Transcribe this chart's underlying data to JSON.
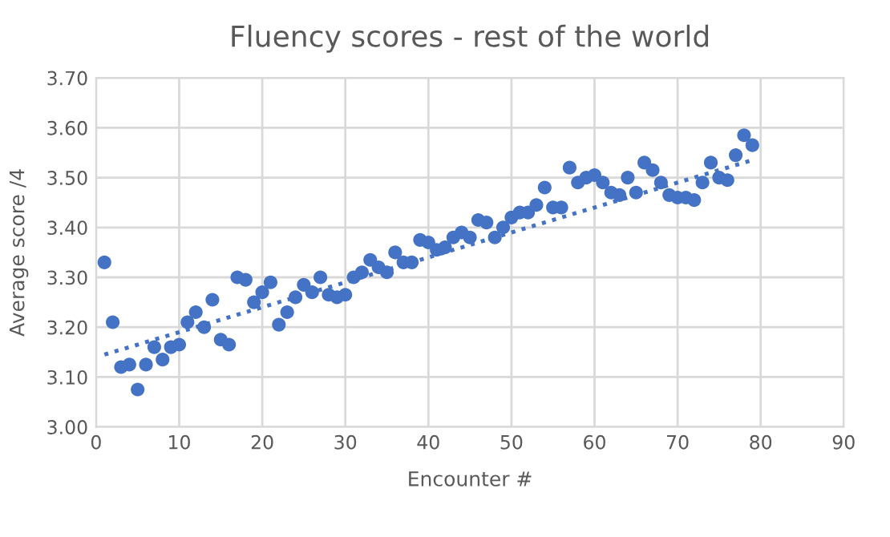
{
  "chart_data": {
    "type": "scatter",
    "title": "Fluency scores - rest of the world",
    "xlabel": "Encounter #",
    "ylabel": "Average score /4",
    "xlim": [
      0,
      90
    ],
    "xticks": [
      0,
      10,
      20,
      30,
      40,
      50,
      60,
      70,
      80,
      90
    ],
    "ylim": [
      3.0,
      3.7
    ],
    "yticks": [
      {
        "value": 3.0,
        "label": "3.00"
      },
      {
        "value": 3.1,
        "label": "3.10"
      },
      {
        "value": 3.2,
        "label": "3.20"
      },
      {
        "value": 3.3,
        "label": "3.30"
      },
      {
        "value": 3.4,
        "label": "3.40"
      },
      {
        "value": 3.5,
        "label": "3.50"
      },
      {
        "value": 3.6,
        "label": "3.60"
      },
      {
        "value": 3.7,
        "label": "3.70"
      }
    ],
    "grid": true,
    "series": [
      {
        "marker": "circle",
        "color": "#4472c4",
        "x": [
          1,
          2,
          3,
          4,
          5,
          6,
          7,
          8,
          9,
          10,
          11,
          12,
          13,
          14,
          15,
          16,
          17,
          18,
          19,
          20,
          21,
          22,
          23,
          24,
          25,
          26,
          27,
          28,
          29,
          30,
          31,
          32,
          33,
          34,
          35,
          36,
          37,
          38,
          39,
          40,
          41,
          42,
          43,
          44,
          45,
          46,
          47,
          48,
          49,
          50,
          51,
          52,
          53,
          54,
          55,
          56,
          57,
          58,
          59,
          60,
          61,
          62,
          63,
          64,
          65,
          66,
          67,
          68,
          69,
          70,
          71,
          72,
          73,
          74,
          75,
          76,
          77,
          78,
          79
        ],
        "values": [
          3.33,
          3.21,
          3.12,
          3.125,
          3.075,
          3.125,
          3.16,
          3.135,
          3.16,
          3.165,
          3.21,
          3.23,
          3.2,
          3.255,
          3.175,
          3.165,
          3.3,
          3.295,
          3.25,
          3.27,
          3.29,
          3.205,
          3.23,
          3.26,
          3.285,
          3.27,
          3.3,
          3.265,
          3.26,
          3.265,
          3.3,
          3.31,
          3.335,
          3.32,
          3.31,
          3.35,
          3.33,
          3.33,
          3.375,
          3.37,
          3.355,
          3.36,
          3.38,
          3.39,
          3.38,
          3.415,
          3.41,
          3.38,
          3.4,
          3.42,
          3.43,
          3.43,
          3.445,
          3.48,
          3.44,
          3.44,
          3.52,
          3.49,
          3.5,
          3.505,
          3.49,
          3.47,
          3.465,
          3.5,
          3.47,
          3.53,
          3.515,
          3.49,
          3.465,
          3.46,
          3.46,
          3.455,
          3.49,
          3.53,
          3.5,
          3.495,
          3.545,
          3.585,
          3.565
        ]
      },
      {
        "type": "line",
        "marker": "none",
        "color": "#4472c4",
        "line_style": "dotted",
        "x": [
          1,
          79
        ],
        "values": [
          3.145,
          3.535
        ]
      }
    ]
  }
}
